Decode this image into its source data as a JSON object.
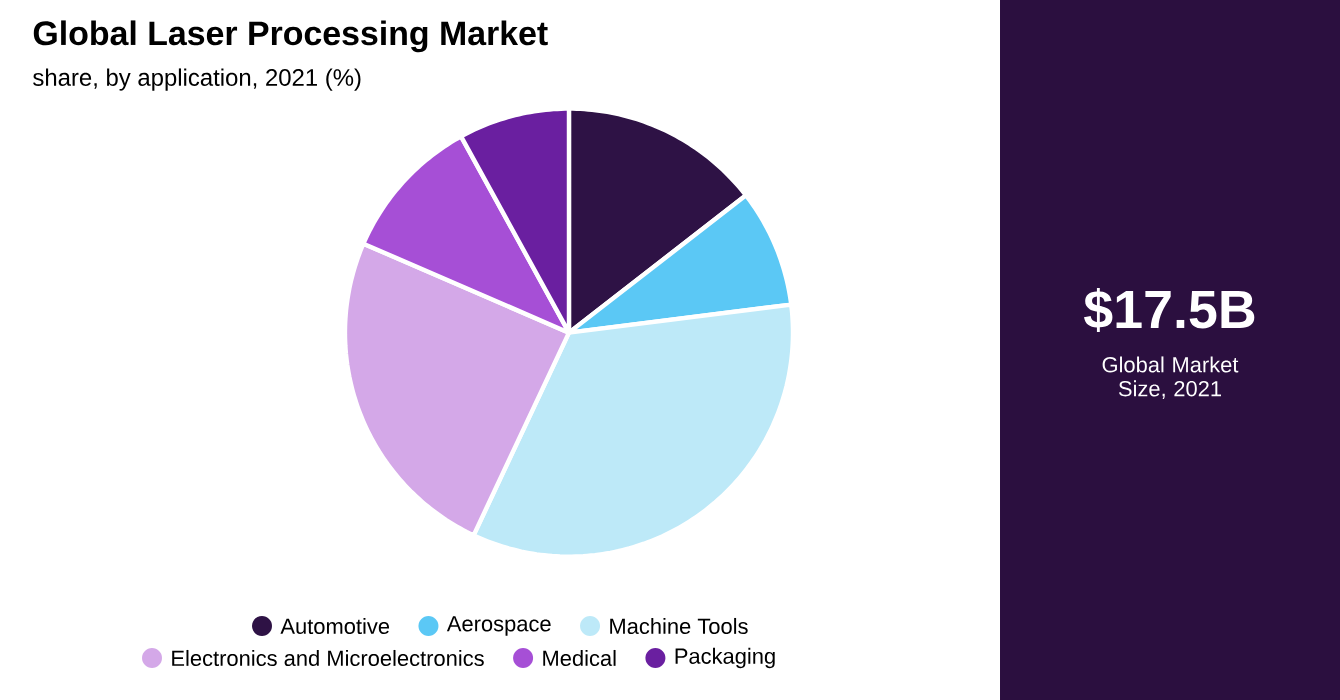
{
  "chart_data": {
    "type": "pie",
    "title": "Global Laser Processing Market",
    "subtitle": "share, by application, 2021 (%)",
    "categories": [
      "Automotive",
      "Aerospace",
      "Machine Tools",
      "Electronics and Microelectronics",
      "Medical",
      "Packaging"
    ],
    "values": [
      14.5,
      8.5,
      34,
      24.5,
      10.5,
      8
    ],
    "colors": [
      "#2e1245",
      "#5bc8f5",
      "#bde9f8",
      "#d4a8e8",
      "#a64fd6",
      "#6a1fa0"
    ],
    "legend": "bottom",
    "annotations": [
      "$17.5B",
      "Global Market Size, 2021"
    ]
  }
}
